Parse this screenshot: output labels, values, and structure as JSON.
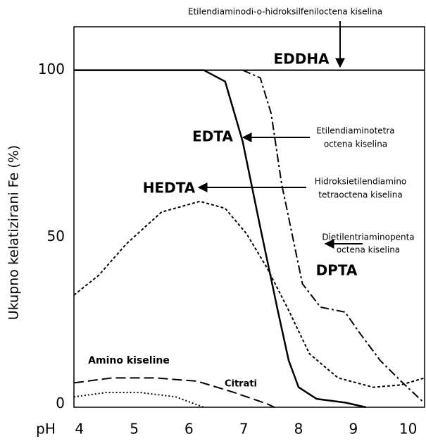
{
  "chart_data": {
    "type": "line",
    "x_label": "pH",
    "y_label": "Ukupno kelatizirani Fe (%)",
    "xlim": [
      3.9,
      10.3
    ],
    "ylim": [
      -1,
      113
    ],
    "xticks": [
      4,
      5,
      6,
      7,
      8,
      9,
      10
    ],
    "yticks": [
      0,
      50,
      100
    ],
    "series": [
      {
        "name": "EDDHA",
        "color": "#000000",
        "style": "solid",
        "x": [
          3.9,
          10.3
        ],
        "values": [
          100,
          100
        ]
      },
      {
        "name": "EDTA",
        "color": "#000000",
        "style": "solid",
        "x": [
          3.9,
          6.27,
          6.66,
          6.98,
          7.3,
          7.62,
          7.82,
          8.0,
          8.33,
          8.85,
          9.23
        ],
        "values": [
          100,
          100,
          96.6,
          78.6,
          53,
          28,
          13,
          5,
          1.5,
          0.4,
          -1
        ]
      },
      {
        "name": "HEDTA",
        "color": "#000000",
        "style": "dash",
        "x": [
          3.9,
          4.35,
          4.86,
          5.5,
          6.2,
          6.66,
          7.05,
          7.43,
          7.82,
          8.2,
          8.72,
          9.36,
          9.87,
          10.3
        ],
        "values": [
          32.6,
          38.5,
          48,
          57.5,
          60.7,
          58.6,
          51,
          40.6,
          28,
          15,
          7.8,
          5,
          5.7,
          7.8
        ]
      },
      {
        "name": "DPTA",
        "color": "#000000",
        "style": "dashdot",
        "x": [
          6.98,
          7.3,
          7.5,
          7.69,
          7.88,
          8.07,
          8.4,
          8.85,
          9.1,
          9.49,
          9.87,
          10.26
        ],
        "values": [
          100,
          97.7,
          87,
          66,
          51,
          36,
          29,
          27.5,
          21.6,
          13,
          6.8,
          0.8
        ]
      },
      {
        "name": "Amino kiseline",
        "color": "#000000",
        "style": "longdash",
        "x": [
          3.9,
          4.6,
          5.38,
          6.15,
          6.79,
          7.43,
          7.56
        ],
        "values": [
          6.3,
          7.8,
          7.8,
          6.8,
          3.6,
          0,
          -1
        ]
      },
      {
        "name": "Citrati",
        "color": "#000000",
        "style": "dot",
        "x": [
          3.9,
          4.48,
          5.12,
          5.76,
          6.27
        ],
        "values": [
          2.1,
          3.4,
          3.4,
          2.1,
          -1
        ]
      }
    ],
    "annotations": [
      [
        "Etilendiaminodi-o-hidroksilfeniloctena kiselina"
      ],
      [
        "Etilendiaminotetra",
        "octena kiselina"
      ],
      [
        "Hidroksietilendiamino",
        "tetraoctena kiselina"
      ],
      [
        "Dietilentriaminopenta",
        "octena kiselina"
      ]
    ]
  }
}
